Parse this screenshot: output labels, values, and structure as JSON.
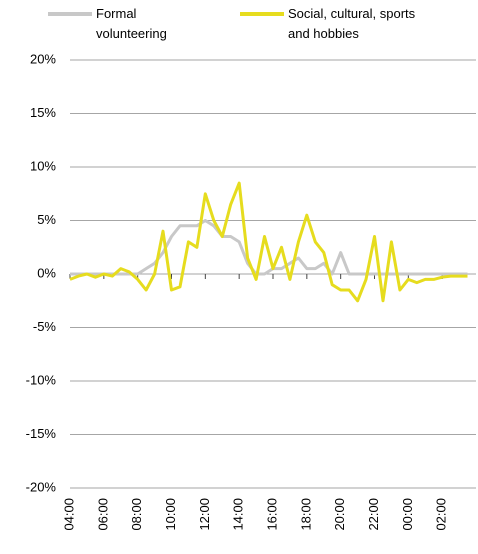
{
  "chart_data": {
    "type": "line",
    "x": [
      4,
      4.5,
      5,
      5.5,
      6,
      6.5,
      7,
      7.5,
      8,
      8.5,
      9,
      9.5,
      10,
      10.5,
      11,
      11.5,
      12,
      12.5,
      13,
      13.5,
      14,
      14.5,
      15,
      15.5,
      16,
      16.5,
      17,
      17.5,
      18,
      18.5,
      19,
      19.5,
      20,
      20.5,
      21,
      21.5,
      22,
      22.5,
      23,
      23.5,
      24,
      24.5,
      25,
      25.5,
      26,
      26.5,
      27,
      27.5
    ],
    "xlim": [
      4,
      28
    ],
    "xticks": [
      {
        "value": 4,
        "label": "04:00"
      },
      {
        "value": 6,
        "label": "06:00"
      },
      {
        "value": 8,
        "label": "08:00"
      },
      {
        "value": 10,
        "label": "10:00"
      },
      {
        "value": 12,
        "label": "12:00"
      },
      {
        "value": 14,
        "label": "14:00"
      },
      {
        "value": 16,
        "label": "16:00"
      },
      {
        "value": 18,
        "label": "18:00"
      },
      {
        "value": 20,
        "label": "20:00"
      },
      {
        "value": 22,
        "label": "22:00"
      },
      {
        "value": 24,
        "label": "00:00"
      },
      {
        "value": 26,
        "label": "02:00"
      }
    ],
    "ylim": [
      -20,
      20
    ],
    "yticks": [
      {
        "value": -20,
        "label": "-20%"
      },
      {
        "value": -15,
        "label": "-15%"
      },
      {
        "value": -10,
        "label": "-10%"
      },
      {
        "value": -5,
        "label": "-5%"
      },
      {
        "value": 0,
        "label": "0%"
      },
      {
        "value": 5,
        "label": "5%"
      },
      {
        "value": 10,
        "label": "10%"
      },
      {
        "value": 15,
        "label": "15%"
      },
      {
        "value": 20,
        "label": "20%"
      }
    ],
    "grid": true,
    "series": [
      {
        "name": "Formal volunteering",
        "color": "#c8c8c8",
        "values": [
          0,
          0,
          0,
          0,
          0,
          0,
          0,
          0,
          0,
          0.5,
          1,
          2,
          3.5,
          4.5,
          4.5,
          4.5,
          5,
          4.5,
          3.5,
          3.5,
          3,
          1,
          0,
          0,
          0.5,
          0.5,
          1,
          1.5,
          0.5,
          0.5,
          1,
          0,
          2,
          0,
          0,
          0,
          0,
          0,
          0,
          0,
          0,
          0,
          0,
          0,
          0,
          0,
          0,
          0
        ]
      },
      {
        "name": "Social, cultural, sports and hobbies",
        "color": "#e6dc1e",
        "values": [
          -0.5,
          -0.2,
          0,
          -0.3,
          0,
          -0.2,
          0.5,
          0.2,
          -0.5,
          -1.5,
          0,
          4,
          -1.5,
          -1.2,
          3,
          2.5,
          7.5,
          5,
          3.5,
          6.5,
          8.5,
          1.5,
          -0.5,
          3.5,
          0.5,
          2.5,
          -0.5,
          3,
          5.5,
          3,
          2,
          -1,
          -1.5,
          -1.5,
          -2.5,
          -0.5,
          3.5,
          -2.5,
          3,
          -1.5,
          -0.5,
          -0.8,
          -0.5,
          -0.5,
          -0.3,
          -0.2,
          -0.2,
          -0.2
        ]
      }
    ]
  }
}
